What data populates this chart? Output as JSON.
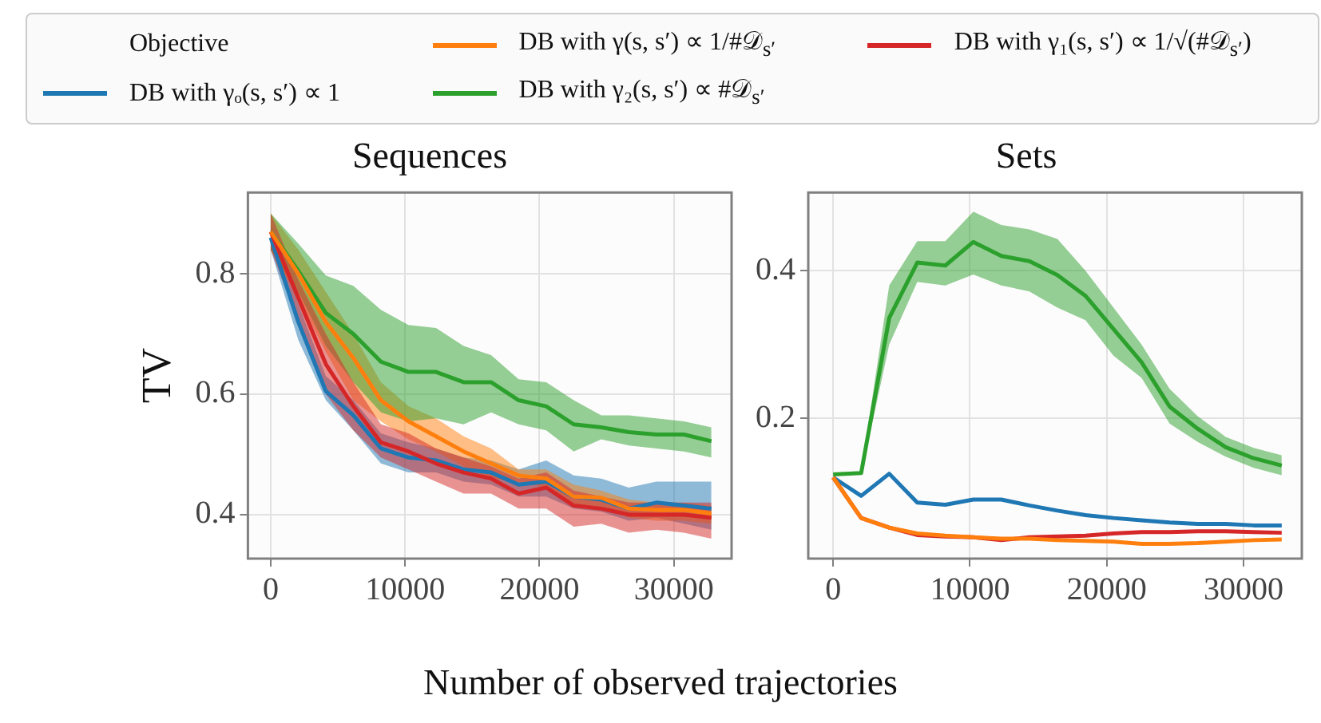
{
  "chart_data": [
    {
      "type": "line",
      "title": "Sequences",
      "ylabel": "TV",
      "xlabel": "Number of observed trajectories",
      "legend_title": "Objective",
      "legend": "top",
      "grid": true,
      "xlim": [
        -1700,
        34300
      ],
      "ylim": [
        0.327,
        0.935
      ],
      "xticks": [
        0,
        10000,
        20000,
        30000
      ],
      "yticks": [
        0.4,
        0.6,
        0.8
      ],
      "x": [
        0,
        2050,
        4100,
        6150,
        8200,
        10250,
        12300,
        14350,
        16400,
        18450,
        20500,
        22550,
        24600,
        26650,
        28700,
        30750,
        32800
      ],
      "series": [
        {
          "name": "DB with γₒ(s, s′) ∝ 1",
          "color": "#1f77b4",
          "values": [
            0.86,
            0.72,
            0.605,
            0.565,
            0.51,
            0.495,
            0.49,
            0.475,
            0.47,
            0.45,
            0.455,
            0.43,
            0.425,
            0.41,
            0.42,
            0.415,
            0.41
          ],
          "upper": [
            0.88,
            0.75,
            0.63,
            0.59,
            0.535,
            0.52,
            0.51,
            0.495,
            0.49,
            0.475,
            0.49,
            0.465,
            0.46,
            0.445,
            0.455,
            0.455,
            0.455
          ],
          "lower": [
            0.84,
            0.69,
            0.59,
            0.54,
            0.485,
            0.47,
            0.47,
            0.455,
            0.45,
            0.43,
            0.43,
            0.41,
            0.405,
            0.39,
            0.395,
            0.385,
            0.375
          ]
        },
        {
          "name": "DB with γ(s, s′) ∝ 1/#𝒟$_{s′}$",
          "color": "#ff7f0e",
          "values": [
            0.87,
            0.8,
            0.72,
            0.66,
            0.59,
            0.555,
            0.53,
            0.505,
            0.485,
            0.465,
            0.46,
            0.43,
            0.428,
            0.41,
            0.408,
            0.408,
            0.402
          ],
          "upper": [
            0.9,
            0.84,
            0.77,
            0.7,
            0.62,
            0.58,
            0.56,
            0.53,
            0.51,
            0.475,
            0.475,
            0.45,
            0.44,
            0.425,
            0.42,
            0.42,
            0.415
          ],
          "lower": [
            0.84,
            0.76,
            0.67,
            0.59,
            0.555,
            0.525,
            0.505,
            0.48,
            0.46,
            0.455,
            0.445,
            0.415,
            0.41,
            0.395,
            0.39,
            0.39,
            0.385
          ]
        },
        {
          "name": "DB with γ₂(s, s′) ∝ #𝒟$_{s′}$",
          "color": "#2ca02c",
          "values": [
            0.87,
            0.805,
            0.735,
            0.7,
            0.654,
            0.637,
            0.637,
            0.62,
            0.62,
            0.59,
            0.58,
            0.55,
            0.545,
            0.537,
            0.533,
            0.533,
            0.522
          ],
          "upper": [
            0.9,
            0.85,
            0.797,
            0.78,
            0.74,
            0.715,
            0.71,
            0.68,
            0.665,
            0.625,
            0.62,
            0.59,
            0.565,
            0.565,
            0.56,
            0.555,
            0.545
          ],
          "lower": [
            0.84,
            0.77,
            0.68,
            0.62,
            0.57,
            0.555,
            0.56,
            0.55,
            0.57,
            0.55,
            0.54,
            0.505,
            0.525,
            0.515,
            0.51,
            0.505,
            0.495
          ]
        },
        {
          "name": "DB with γ₁(s, s′) ∝ 1/√(#𝒟$_{s′}$)",
          "color": "#d62728",
          "values": [
            0.87,
            0.76,
            0.65,
            0.58,
            0.52,
            0.505,
            0.485,
            0.47,
            0.46,
            0.435,
            0.445,
            0.415,
            0.41,
            0.4,
            0.4,
            0.4,
            0.395
          ],
          "upper": [
            0.9,
            0.79,
            0.7,
            0.62,
            0.55,
            0.535,
            0.51,
            0.495,
            0.48,
            0.46,
            0.47,
            0.44,
            0.43,
            0.42,
            0.42,
            0.42,
            0.42
          ],
          "lower": [
            0.84,
            0.72,
            0.6,
            0.54,
            0.495,
            0.475,
            0.455,
            0.435,
            0.435,
            0.41,
            0.41,
            0.38,
            0.385,
            0.37,
            0.375,
            0.37,
            0.36
          ]
        }
      ]
    },
    {
      "type": "line",
      "title": "Sets",
      "grid": true,
      "xlim": [
        -1820,
        34270
      ],
      "ylim": [
        0.01,
        0.506
      ],
      "xticks": [
        0,
        10000,
        20000,
        30000
      ],
      "yticks": [
        0.2,
        0.4
      ],
      "x": [
        0,
        2050,
        4100,
        6150,
        8200,
        10250,
        12300,
        14350,
        16400,
        18450,
        20500,
        22550,
        24600,
        26650,
        28700,
        30750,
        32800
      ],
      "series": [
        {
          "color": "#1f77b4",
          "values": [
            0.12,
            0.095,
            0.125,
            0.086,
            0.083,
            0.09,
            0.09,
            0.082,
            0.075,
            0.069,
            0.065,
            0.062,
            0.059,
            0.057,
            0.057,
            0.055,
            0.055
          ]
        },
        {
          "color": "#ff7f0e",
          "values": [
            0.12,
            0.065,
            0.052,
            0.044,
            0.041,
            0.039,
            0.037,
            0.037,
            0.035,
            0.034,
            0.033,
            0.03,
            0.03,
            0.031,
            0.033,
            0.035,
            0.036
          ]
        },
        {
          "color": "#2ca02c",
          "values": [
            0.124,
            0.126,
            0.336,
            0.411,
            0.407,
            0.439,
            0.42,
            0.413,
            0.394,
            0.366,
            0.321,
            0.276,
            0.216,
            0.186,
            0.161,
            0.146,
            0.136
          ],
          "upper": [
            0.124,
            0.128,
            0.38,
            0.44,
            0.44,
            0.48,
            0.462,
            0.456,
            0.443,
            0.4,
            0.35,
            0.3,
            0.24,
            0.203,
            0.175,
            0.16,
            0.15
          ],
          "lower": [
            0.124,
            0.124,
            0.3,
            0.385,
            0.38,
            0.395,
            0.38,
            0.372,
            0.35,
            0.333,
            0.285,
            0.255,
            0.193,
            0.168,
            0.148,
            0.133,
            0.123
          ]
        },
        {
          "color": "#d62728",
          "values": [
            0.12,
            0.065,
            0.052,
            0.042,
            0.04,
            0.039,
            0.035,
            0.039,
            0.04,
            0.041,
            0.044,
            0.046,
            0.046,
            0.047,
            0.047,
            0.046,
            0.045
          ]
        }
      ]
    }
  ]
}
